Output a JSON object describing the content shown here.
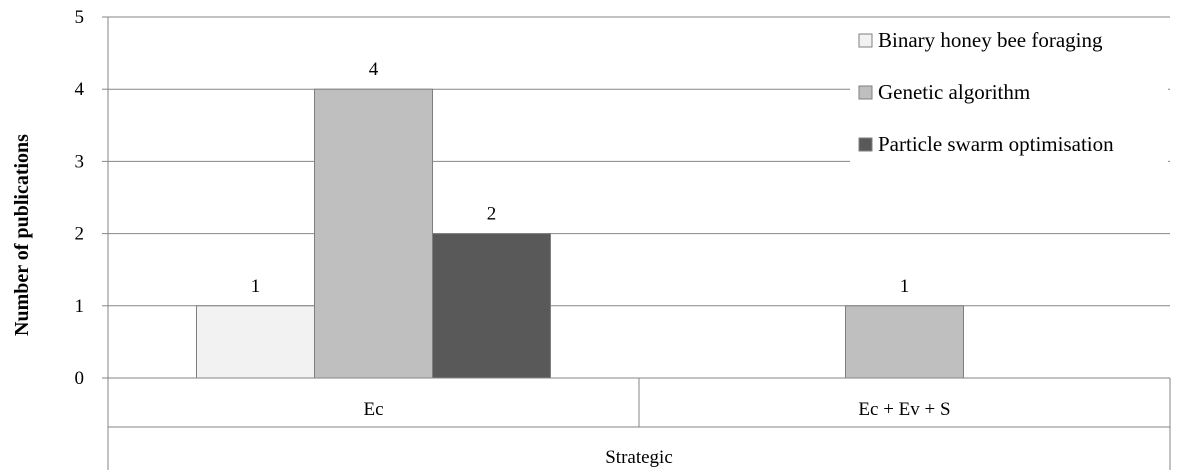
{
  "chart_data": {
    "type": "bar",
    "ylabel": "Number of publications",
    "xlabel": "",
    "ylim": [
      0,
      5
    ],
    "yticks": [
      0,
      1,
      2,
      3,
      4,
      5
    ],
    "grid": true,
    "legend_position": "top-right",
    "categories": [
      "Ec",
      "Ec + Ev + S"
    ],
    "group_label": "Strategic",
    "series": [
      {
        "name": "Binary honey bee foraging",
        "values": [
          1,
          null
        ],
        "color": "#f2f2f2"
      },
      {
        "name": "Genetic algorithm",
        "values": [
          4,
          1
        ],
        "color": "#bfbfbf"
      },
      {
        "name": "Particle swarm optimisation",
        "values": [
          2,
          null
        ],
        "color": "#595959"
      }
    ]
  }
}
